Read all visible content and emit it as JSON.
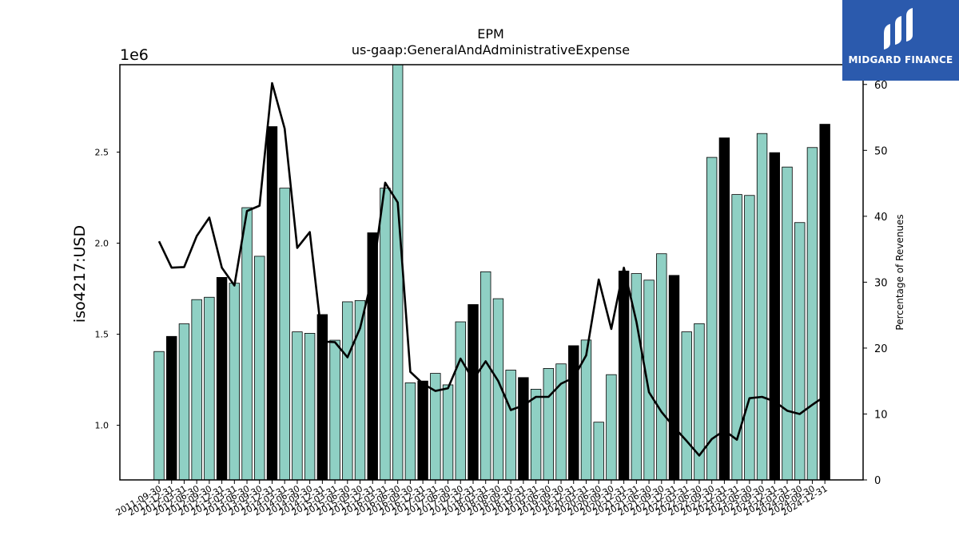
{
  "brand": {
    "name": "MIDGARD FINANCE",
    "bg_color": "#2b5aad"
  },
  "chart_data": {
    "type": "bar",
    "title": "EPM",
    "subtitle": "us-gaap:GeneralAndAdministrativeExpense",
    "ylabel": "iso4217:USD",
    "y_offset_label": "1e6",
    "y2label": "Percentage of Revenues",
    "ylim": [
      700000,
      2980000
    ],
    "y2lim": [
      0,
      63
    ],
    "yticks": [
      1000000,
      1500000,
      2000000,
      2500000
    ],
    "ytick_labels": [
      "1.0",
      "1.5",
      "2.0",
      "2.5"
    ],
    "y2ticks": [
      0,
      10,
      20,
      30,
      40,
      50,
      60
    ],
    "grid": false,
    "bar_color": "#8fd0c4",
    "highlight_color": "#000000",
    "line_color": "#000000",
    "categories": [
      "2011-09-30",
      "2011-12-31",
      "2012-03-31",
      "2012-06-30",
      "2012-09-30",
      "2012-12-31",
      "2013-03-31",
      "2013-06-30",
      "2013-09-30",
      "2013-12-31",
      "2014-03-31",
      "2014-06-30",
      "2014-09-30",
      "2014-12-31",
      "2015-03-31",
      "2015-06-30",
      "2015-09-30",
      "2015-12-31",
      "2016-03-31",
      "2016-06-30",
      "2016-09-30",
      "2016-12-31",
      "2017-03-31",
      "2017-06-30",
      "2017-09-30",
      "2017-12-31",
      "2018-03-31",
      "2018-06-30",
      "2018-09-30",
      "2018-12-31",
      "2019-03-31",
      "2019-06-30",
      "2019-09-30",
      "2019-12-31",
      "2020-03-31",
      "2020-06-30",
      "2020-09-30",
      "2020-12-31",
      "2021-03-31",
      "2021-06-30",
      "2021-09-30",
      "2021-12-31",
      "2022-03-31",
      "2022-06-30",
      "2022-09-30",
      "2022-12-31",
      "2023-03-31",
      "2023-06-30",
      "2023-09-30",
      "2023-12-31",
      "2024-03-31",
      "2024-06-30",
      "2024-09-30",
      "2024-12-31"
    ],
    "series": [
      {
        "type": "bar",
        "values": [
          1405000,
          1488000,
          1557000,
          1690000,
          1703000,
          1812000,
          1780000,
          2195000,
          1928000,
          2640000,
          2302000,
          1513000,
          1505000,
          1608000,
          1467000,
          1678000,
          1685000,
          2057000,
          2302000,
          3000000,
          1233000,
          1243000,
          1285000,
          1222000,
          1568000,
          1663000,
          1843000,
          1695000,
          1303000,
          1262000,
          1198000,
          1312000,
          1337000,
          1437000,
          1468000,
          1017000,
          1278000,
          1847000,
          1833000,
          1797000,
          1942000,
          1823000,
          1513000,
          1558000,
          2471000,
          2578000,
          2267000,
          2262000,
          2602000,
          2497000,
          2418000,
          2113000,
          2525000,
          2653000
        ],
        "highlight": [
          false,
          true,
          false,
          false,
          false,
          true,
          false,
          false,
          false,
          true,
          false,
          false,
          false,
          true,
          false,
          false,
          false,
          true,
          false,
          false,
          false,
          true,
          false,
          false,
          false,
          true,
          false,
          false,
          false,
          true,
          false,
          false,
          false,
          true,
          false,
          false,
          false,
          true,
          false,
          false,
          false,
          true,
          false,
          false,
          false,
          true,
          false,
          false,
          false,
          true,
          false,
          false,
          false,
          true
        ]
      },
      {
        "type": "line",
        "axis": "right",
        "values": [
          36.2,
          32.2,
          32.3,
          37.0,
          39.8,
          32.2,
          29.5,
          40.8,
          41.6,
          60.2,
          53.3,
          35.2,
          37.6,
          21.0,
          20.9,
          18.6,
          23.0,
          31.0,
          45.1,
          42.1,
          16.4,
          14.6,
          13.5,
          13.9,
          18.4,
          15.2,
          18.0,
          15.0,
          10.6,
          11.3,
          12.6,
          12.6,
          14.6,
          15.5,
          18.9,
          30.4,
          22.9,
          32.2,
          24.0,
          13.3,
          10.3,
          8.0,
          5.9,
          3.7,
          6.2,
          7.5,
          6.1,
          12.4,
          12.6,
          11.9,
          10.5,
          10.0,
          11.4,
          12.7
        ]
      }
    ]
  }
}
